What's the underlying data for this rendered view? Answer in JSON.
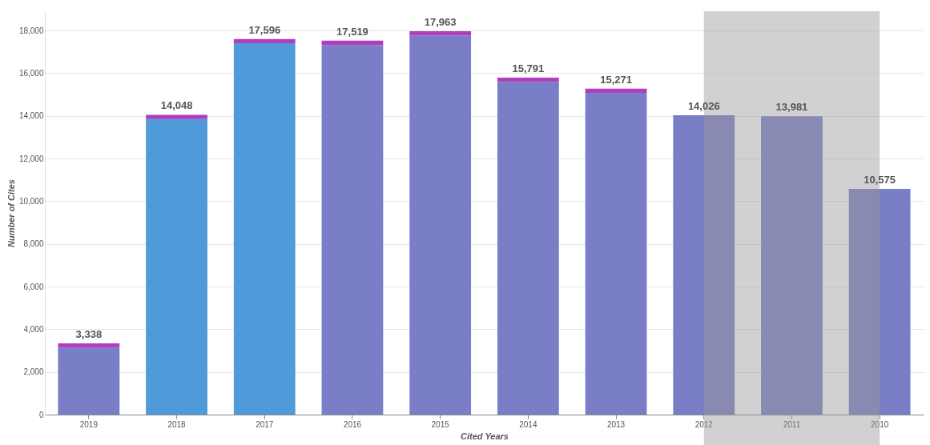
{
  "chart_data": {
    "type": "bar",
    "stacked": true,
    "xlabel": "Cited Years",
    "ylabel": "Number of Cites",
    "categories": [
      "2019",
      "2018",
      "2017",
      "2016",
      "2015",
      "2014",
      "2013",
      "2012",
      "2011",
      "2010"
    ],
    "series": [
      {
        "colors": [
          "#7a7ec6",
          "#4f9ad8",
          "#4f9ad8",
          "#7a7ec6",
          "#7a7ec6",
          "#7a7ec6",
          "#7a7ec6",
          "#7a7ec6",
          "#7a7ec6",
          "#7a7ec6"
        ],
        "values": [
          3138,
          13848,
          17396,
          17319,
          17763,
          15591,
          15071,
          14026,
          13981,
          10575
        ]
      },
      {
        "color": "#b03fc0",
        "values": [
          200,
          200,
          200,
          200,
          200,
          200,
          200,
          0,
          0,
          0
        ]
      }
    ],
    "bands": [
      {
        "axis": "x",
        "from": "2012",
        "to": "2010",
        "color": "#9a9a9a"
      }
    ],
    "totals": [
      "3,338",
      "14,048",
      "17,596",
      "17,519",
      "17,963",
      "15,791",
      "15,271",
      "14,026",
      "13,981",
      "10,575"
    ],
    "ylim": [
      0,
      18900
    ],
    "yticks": [
      {
        "value": 0,
        "label": "0"
      },
      {
        "value": 2000,
        "label": "2,000"
      },
      {
        "value": 4000,
        "label": "4,000"
      },
      {
        "value": 6000,
        "label": "6,000"
      },
      {
        "value": 8000,
        "label": "8,000"
      },
      {
        "value": 10000,
        "label": "10,000"
      },
      {
        "value": 12000,
        "label": "12,000"
      },
      {
        "value": 14000,
        "label": "14,000"
      },
      {
        "value": 16000,
        "label": "16,000"
      },
      {
        "value": 18000,
        "label": "18,000"
      }
    ],
    "grid": "y"
  }
}
